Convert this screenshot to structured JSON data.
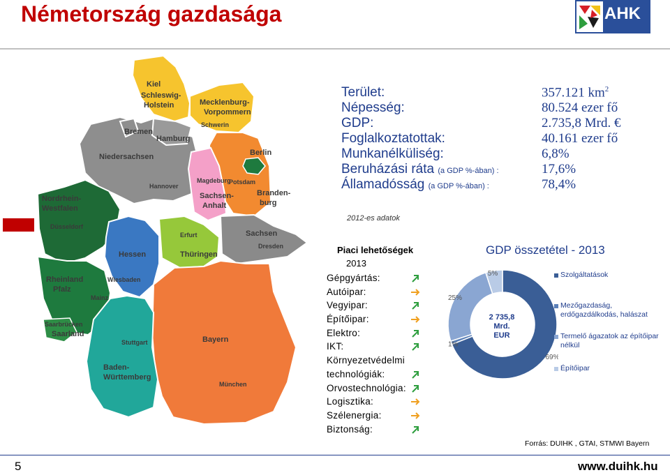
{
  "header": {
    "title": "Németország gazdasága",
    "logo_text": "AHK"
  },
  "stats": [
    {
      "label": "Terület:",
      "sublabel": "",
      "value": "357.121  km",
      "sup": "2"
    },
    {
      "label": "Népesség:",
      "sublabel": "",
      "value": "80.524 ezer fő",
      "sup": ""
    },
    {
      "label": "GDP:",
      "sublabel": "",
      "value": "2.735,8 Mrd. €",
      "sup": ""
    },
    {
      "label": "Foglalkoztatottak:",
      "sublabel": "",
      "value": "40.161 ezer fő",
      "sup": ""
    },
    {
      "label": "Munkanélküliség:",
      "sublabel": "",
      "value": "6,8%",
      "sup": ""
    },
    {
      "label": "Beruházási ráta",
      "sublabel": "(a GDP %-ában) :",
      "value": "17,6%",
      "sup": ""
    },
    {
      "label": "Államadósság",
      "sublabel": "(a GDP %-ában) :",
      "value": "78,4%",
      "sup": ""
    }
  ],
  "note": "2012-es adatok",
  "opportunities": {
    "title": "Piaci lehetőségek",
    "year": "2013",
    "items": [
      {
        "label": "Gépgyártás:",
        "trend": "up"
      },
      {
        "label": "Autóipar:",
        "trend": "flat"
      },
      {
        "label": "Vegyipar:",
        "trend": "up"
      },
      {
        "label": "Építőipar:",
        "trend": "flat"
      },
      {
        "label": "Elektro:",
        "trend": "up"
      },
      {
        "label": "IKT:",
        "trend": "up"
      },
      {
        "label": "Környezetvédelmi",
        "trend": "none"
      },
      {
        "label": "technológiák:",
        "trend": "up"
      },
      {
        "label": "Orvostechnológia:",
        "trend": "up"
      },
      {
        "label": "Logisztika:",
        "trend": "flat"
      },
      {
        "label": "Szélenergia:",
        "trend": "flat"
      },
      {
        "label": "Biztonság:",
        "trend": "up"
      }
    ],
    "arrow_colors": {
      "up": "#2e9e3e",
      "flat": "#f0a020"
    }
  },
  "gdp_chart": {
    "title": "GDP összetétel - 2013",
    "center_line1": "2 735,8",
    "center_line2": "Mrd.",
    "center_line3": "EUR",
    "legend": [
      {
        "label": "Szolgáltatások",
        "color": "#3a5e96"
      },
      {
        "label": "Mezőgazdaság, erdőgazdálkodás, halászat",
        "color": "#5b80b8"
      },
      {
        "label": "Termelő ágazatok az építőipar nélkül",
        "color": "#8aa6d2"
      },
      {
        "label": "Építőipar",
        "color": "#b9cbe6"
      }
    ]
  },
  "chart_data": {
    "type": "pie",
    "title": "GDP összetétel - 2013",
    "categories": [
      "Szolgáltatások",
      "Mezőgazdaság, erdőgazdálkodás, halászat",
      "Termelő ágazatok az építőipar nélkül",
      "Építőipar"
    ],
    "values": [
      69,
      1,
      25,
      5
    ],
    "value_labels": [
      "69%",
      "1%",
      "25%",
      "5%"
    ],
    "colors": [
      "#3a5e96",
      "#5b80b8",
      "#8aa6d2",
      "#b9cbe6"
    ],
    "legend_position": "right"
  },
  "map": {
    "regions": [
      "Kiel",
      "Schleswig-Holstein",
      "Mecklenburg-Vorpommern",
      "Schwerin",
      "Bremen",
      "Hamburg",
      "Niedersachsen",
      "Hannover",
      "Berlin",
      "Potsdam",
      "Branden-burg",
      "Magdeburg",
      "Sachsen-Anhalt",
      "Nordrhein-Westfalen",
      "Düsseldorf",
      "Hessen",
      "Wiesbaden",
      "Erfurt",
      "Thüringen",
      "Sachsen",
      "Dresden",
      "Rheinland Pfalz",
      "Mainz",
      "Saarbrücken",
      "Saarland",
      "Stuttgart",
      "Baden-Württemberg",
      "Bayern",
      "München"
    ]
  },
  "footer": {
    "source": "Forrás: DUIHK , GTAI, STMWI Bayern",
    "page_number": "5",
    "url": "www.duihk.hu"
  }
}
